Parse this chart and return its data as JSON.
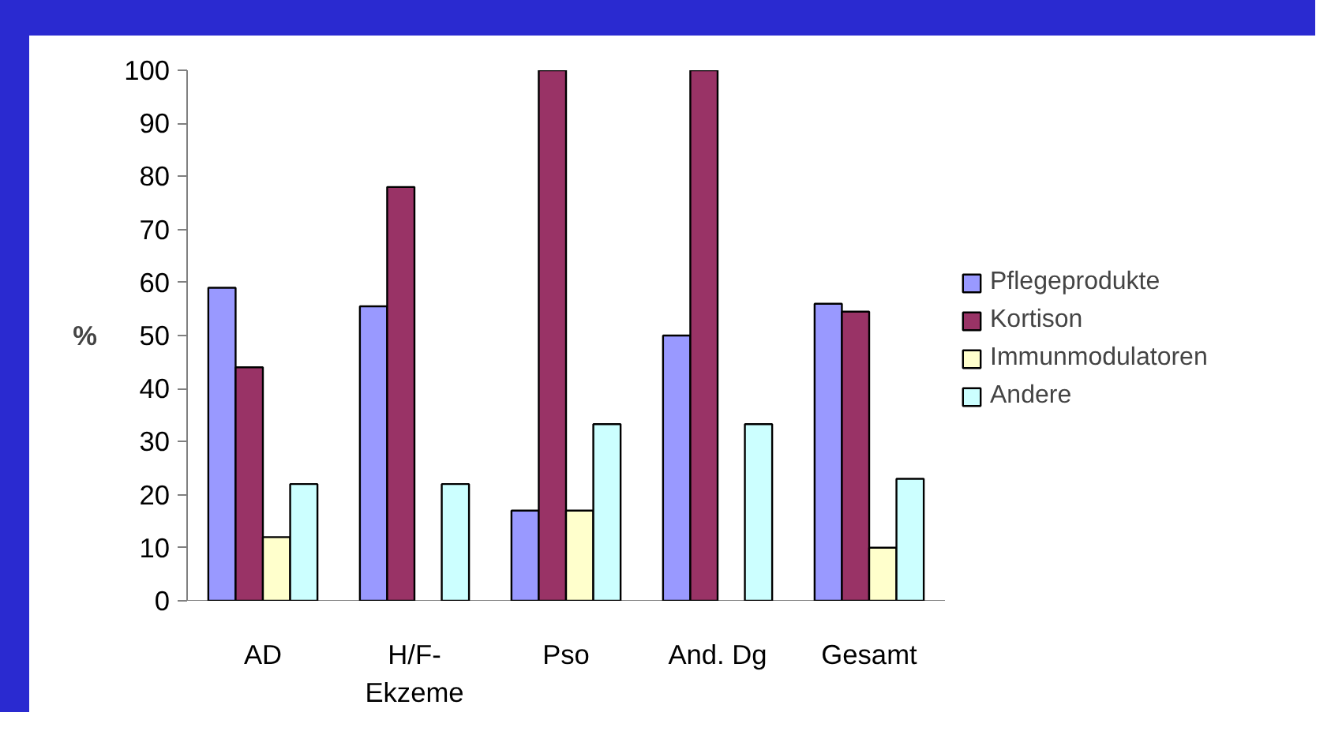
{
  "chart_data": {
    "type": "bar",
    "categories": [
      "AD",
      "H/F-Ekzeme",
      "Pso",
      "And. Dg",
      "Gesamt"
    ],
    "ylabel": "%",
    "ylim": [
      0,
      100
    ],
    "yticks": [
      0,
      10,
      20,
      30,
      40,
      50,
      60,
      70,
      80,
      90,
      100
    ],
    "grid": false,
    "legend": "right",
    "series": [
      {
        "name": "Pflegeprodukte",
        "color": "#9999ff",
        "values": [
          59,
          55.5,
          17,
          50,
          56
        ]
      },
      {
        "name": "Kortison",
        "color": "#993366",
        "values": [
          44,
          78,
          100,
          100,
          54.5
        ]
      },
      {
        "name": "Immunmodulatoren",
        "color": "#ffffcc",
        "values": [
          12,
          null,
          17,
          null,
          10
        ]
      },
      {
        "name": "Andere",
        "color": "#ccffff",
        "values": [
          22,
          22,
          33.3,
          33.3,
          23
        ]
      }
    ]
  }
}
